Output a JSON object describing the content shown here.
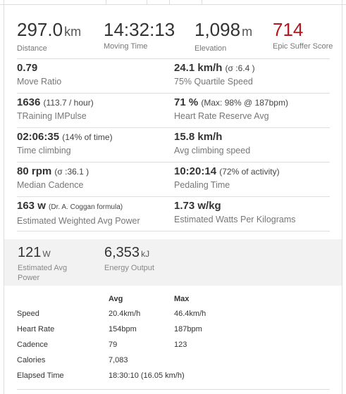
{
  "summary": [
    {
      "value": "297.0",
      "unit": "km",
      "label": "Distance"
    },
    {
      "value": "14:32:13",
      "unit": "",
      "label": "Moving Time"
    },
    {
      "value": "1,098",
      "unit": "m",
      "label": "Elevation"
    },
    {
      "value": "714",
      "unit": "",
      "label": "Epic Suffer Score"
    }
  ],
  "stats": [
    {
      "left": {
        "value": "0.79",
        "note": "",
        "label": "Move Ratio"
      },
      "right": {
        "value": "24.1 km/h",
        "note": "(σ :6.4 )",
        "label": "75% Quartile Speed"
      }
    },
    {
      "left": {
        "value": "1636",
        "note": "(113.7 / hour)",
        "label": "TRaining IMPulse"
      },
      "right": {
        "value": "71 %",
        "note": "(Max: 98% @ 187bpm)",
        "label": "Heart Rate Reserve Avg"
      }
    },
    {
      "left": {
        "value": "02:06:35",
        "note": "(14% of time)",
        "label": "Time climbing"
      },
      "right": {
        "value": "15.8 km/h",
        "note": "",
        "label": "Avg climbing speed"
      }
    },
    {
      "left": {
        "value": "80 rpm",
        "note": "(σ :36.1 )",
        "label": "Median Cadence"
      },
      "right": {
        "value": "10:20:14",
        "note": "(72% of activity)",
        "label": "Pedaling Time"
      }
    },
    {
      "left": {
        "value": "163 w",
        "note": "(Dr. A. Coggan formula)",
        "label": "Estimated Weighted Avg Power"
      },
      "right": {
        "value": "1.73 w/kg",
        "note": "",
        "label": "Estimated Watts Per Kilograms"
      }
    }
  ],
  "power": [
    {
      "value": "121",
      "unit": "W",
      "label": "Estimated Avg Power"
    },
    {
      "value": "6,353",
      "unit": "kJ",
      "label": "Energy Output"
    }
  ],
  "table": {
    "headers": [
      "",
      "Avg",
      "Max"
    ],
    "rows": [
      [
        "Speed",
        "20.4km/h",
        "46.4km/h"
      ],
      [
        "Heart Rate",
        "154bpm",
        "187bpm"
      ],
      [
        "Cadence",
        "79",
        "123"
      ],
      [
        "Calories",
        "7,083",
        ""
      ],
      [
        "Elapsed Time",
        "18:30:10 (16.05 km/h)",
        ""
      ]
    ]
  }
}
